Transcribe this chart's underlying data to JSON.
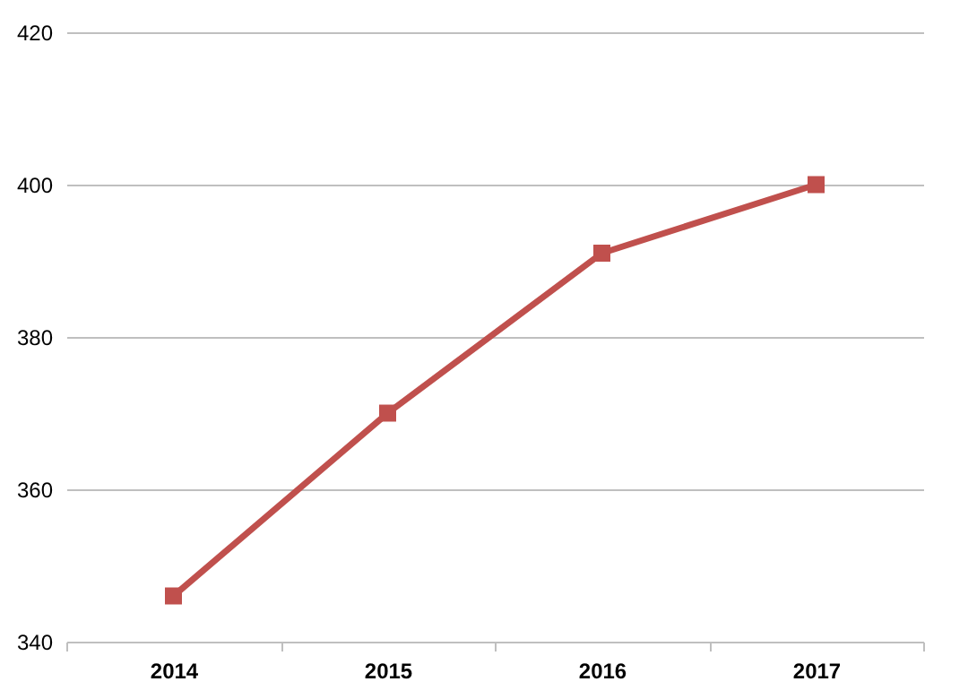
{
  "chart_data": {
    "type": "line",
    "categories": [
      "2014",
      "2015",
      "2016",
      "2017"
    ],
    "series": [
      {
        "color": "#c0504d",
        "values": [
          346,
          370,
          391,
          400
        ]
      }
    ],
    "ylim": [
      340,
      420
    ],
    "yticks": [
      340,
      360,
      380,
      400,
      420
    ],
    "grid": "y",
    "marker": "square",
    "line_style": "solid",
    "legend": false
  }
}
